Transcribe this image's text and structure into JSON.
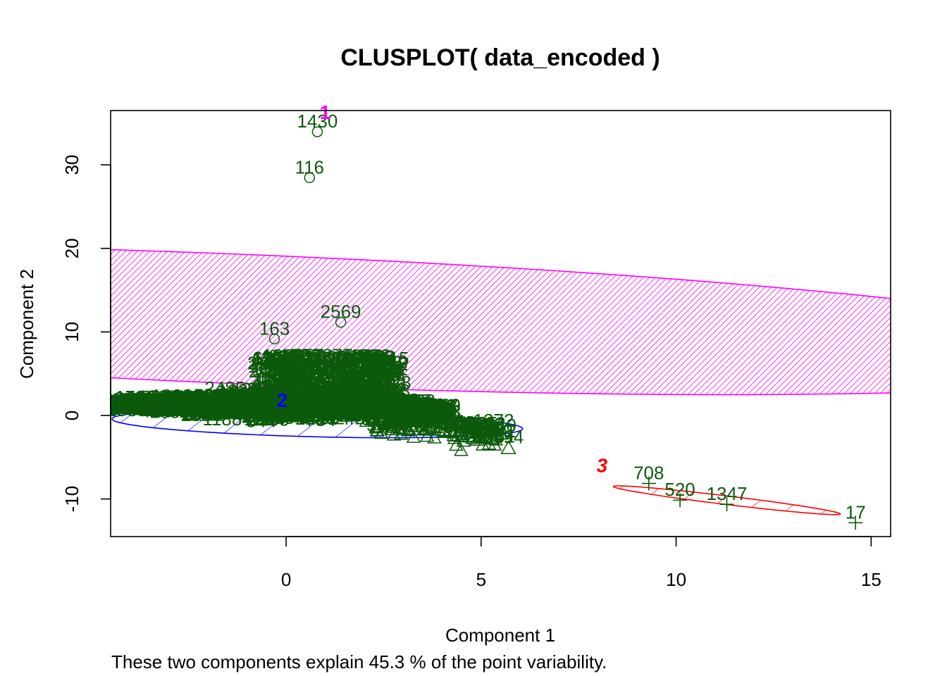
{
  "chart_data": {
    "type": "scatter",
    "title": "CLUSPLOT( data_encoded )",
    "xlabel": "Component 1",
    "ylabel": "Component 2",
    "subtitle": "These two components explain 45.3 % of the point variability.",
    "xlim": [
      -4.5,
      15.5
    ],
    "ylim": [
      -14.5,
      36.5
    ],
    "x_ticks": [
      0,
      5,
      10,
      15
    ],
    "y_ticks": [
      -10,
      0,
      10,
      20,
      30
    ],
    "x_tick_labels": [
      "0",
      "5",
      "10",
      "15"
    ],
    "y_tick_labels": [
      "-10",
      "0",
      "10",
      "20",
      "30"
    ],
    "grid": false,
    "colors": {
      "points": "#0b5a0b",
      "cluster1": "#ff00ff",
      "cluster2": "#0000ff",
      "cluster3": "#ff0000"
    },
    "clusters": [
      {
        "id": "1",
        "label": "1",
        "color": "#ff00ff",
        "marker": "circle",
        "label_pos": [
          1.0,
          35.5
        ],
        "ellipse": {
          "cx": -0.95,
          "cy": 11.5,
          "rx": 7.6,
          "ry": 24.5,
          "angle": 78,
          "shading": "dense"
        }
      },
      {
        "id": "2",
        "label": "2",
        "color": "#0000ff",
        "marker": "triangle",
        "label_pos": [
          -0.1,
          1.0
        ],
        "ellipse": {
          "cx": 0.8,
          "cy": -1.0,
          "rx": 5.3,
          "ry": 1.55,
          "angle": -7,
          "shading": "sparse"
        }
      },
      {
        "id": "3",
        "label": "3",
        "color": "#ff0000",
        "marker": "plus",
        "label_pos": [
          8.1,
          -6.8
        ],
        "ellipse": {
          "cx": 11.3,
          "cy": -10.15,
          "rx": 3.35,
          "ry": 0.45,
          "angle": -30,
          "shading": "sparse"
        }
      }
    ],
    "labeled_points": [
      {
        "label": "1430",
        "x": 0.8,
        "y": 34.3,
        "cluster": "1"
      },
      {
        "label": "116",
        "x": 0.6,
        "y": 28.8,
        "cluster": "1"
      },
      {
        "label": "2569",
        "x": 1.4,
        "y": 11.5,
        "cluster": "1"
      },
      {
        "label": "163",
        "x": -0.3,
        "y": 9.5,
        "cluster": "1"
      },
      {
        "label": "708",
        "x": 9.3,
        "y": -7.8,
        "cluster": "3"
      },
      {
        "label": "520",
        "x": 10.1,
        "y": -9.8,
        "cluster": "3"
      },
      {
        "label": "1347",
        "x": 11.3,
        "y": -10.3,
        "cluster": "3"
      },
      {
        "label": "17",
        "x": 14.6,
        "y": -12.5,
        "cluster": "3"
      },
      {
        "label": "494",
        "x": 5.7,
        "y": -3.5,
        "cluster": "2"
      },
      {
        "label": "470",
        "x": 4.9,
        "y": -2.5,
        "cluster": "2"
      }
    ]
  }
}
